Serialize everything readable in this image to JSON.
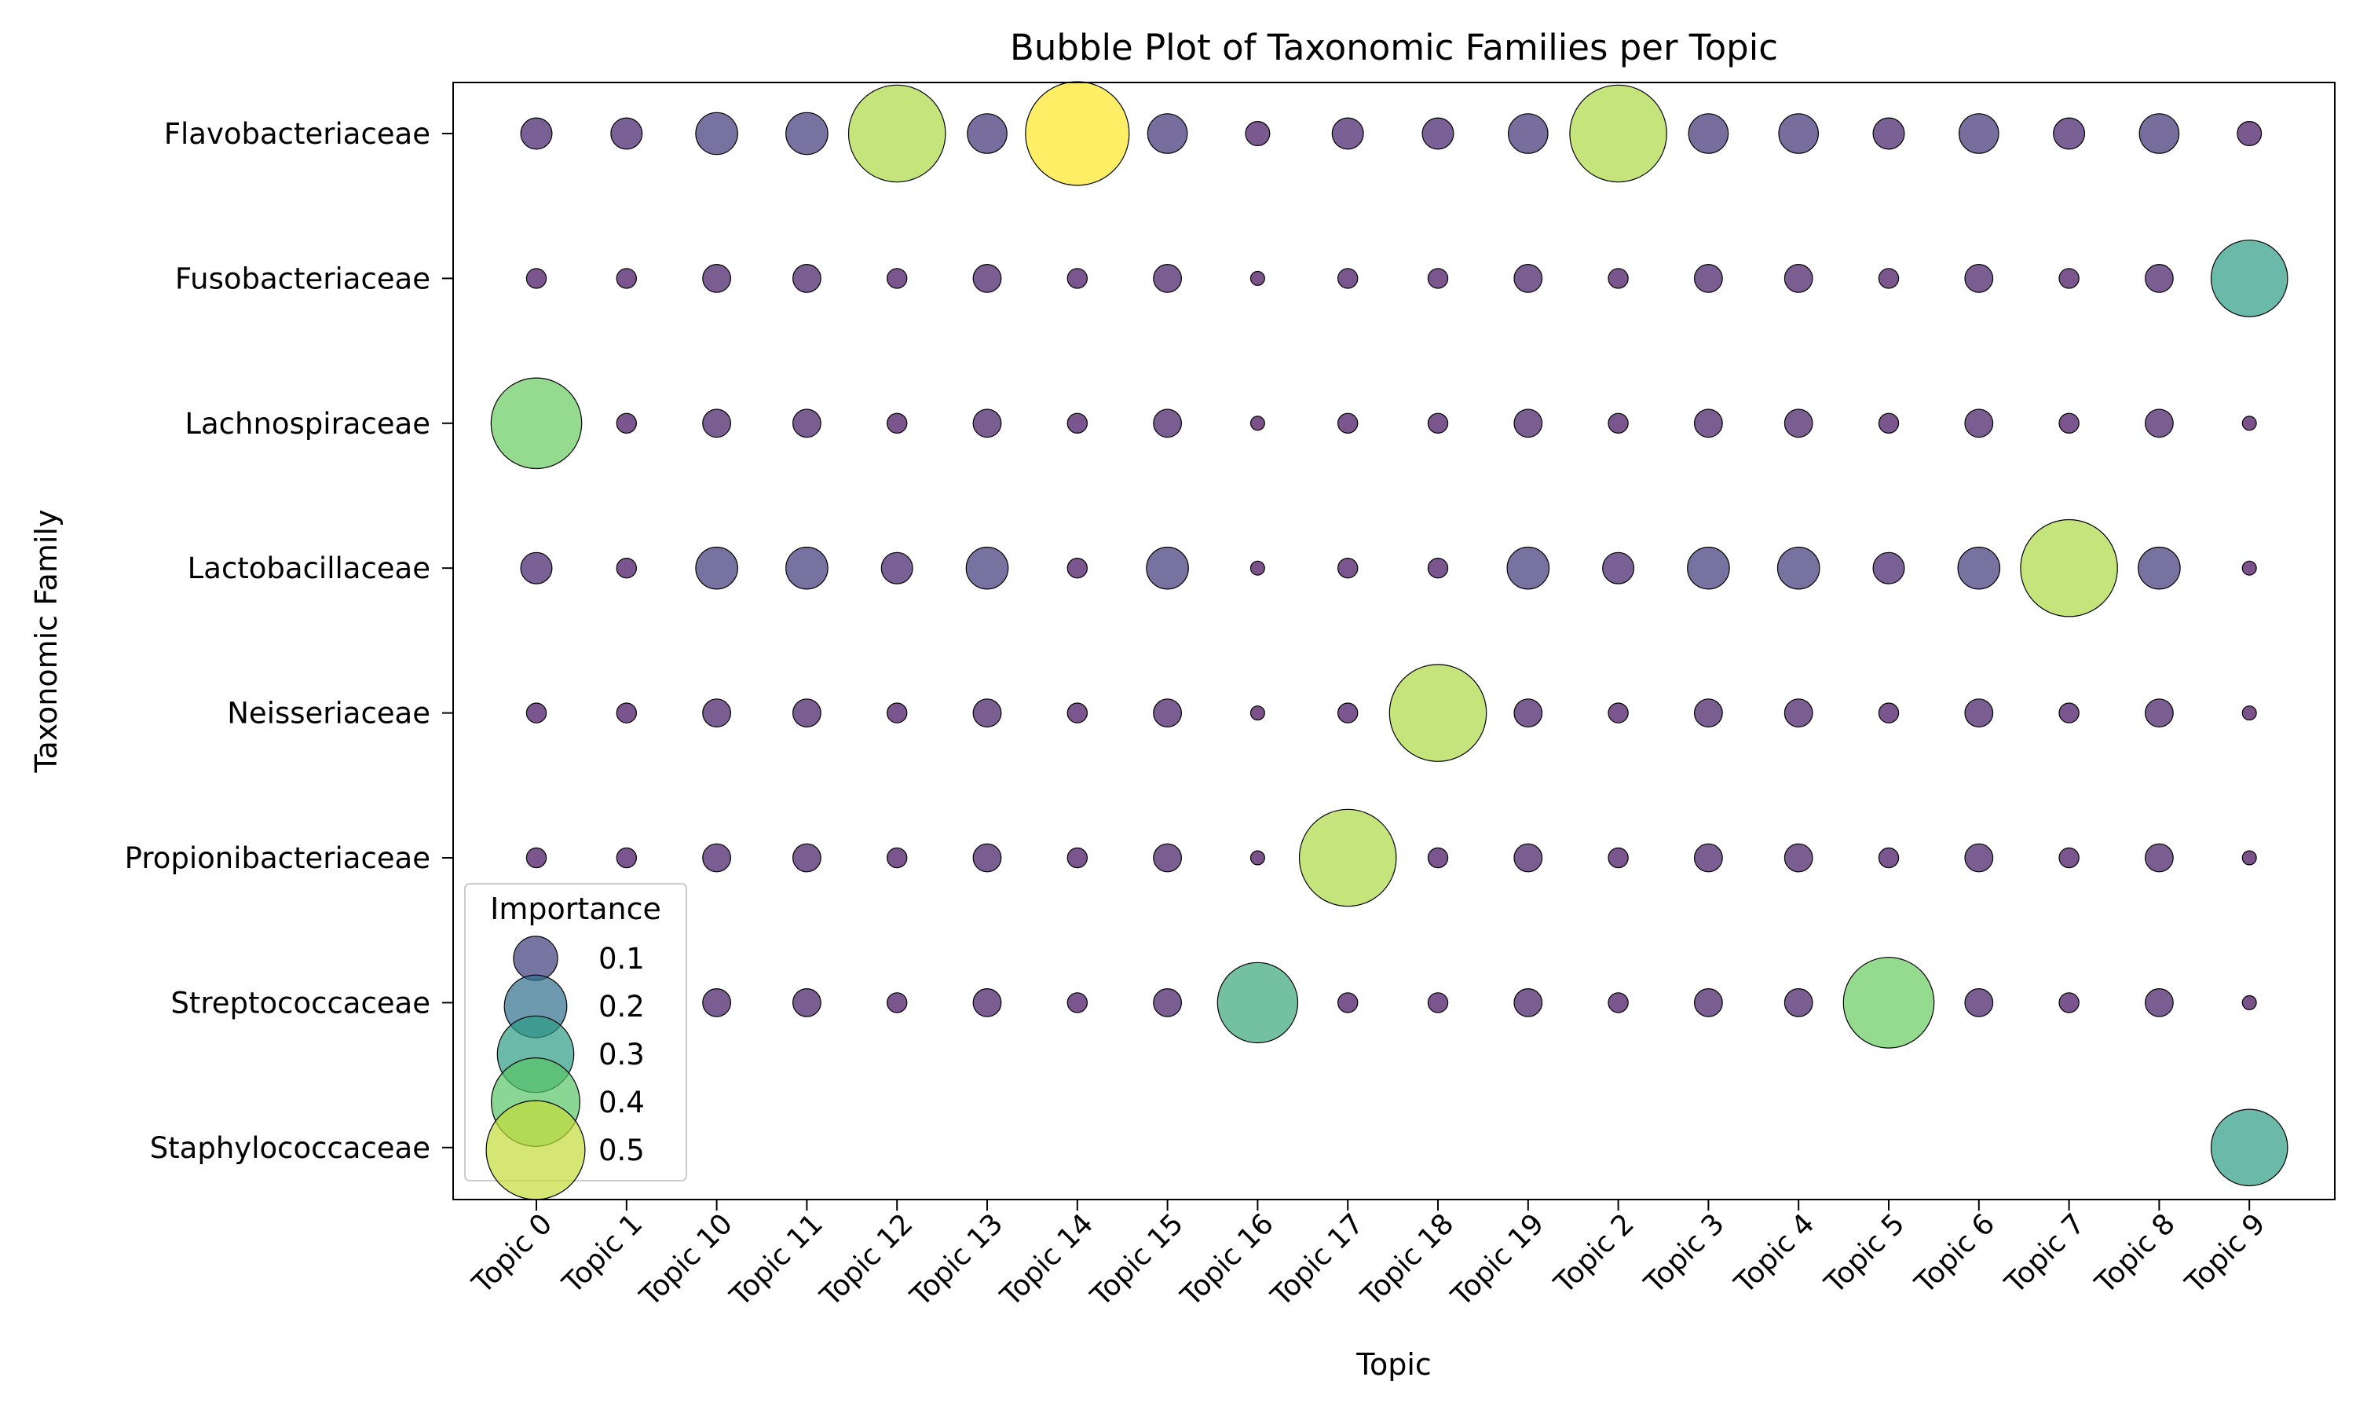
{
  "chart_data": {
    "type": "scatter",
    "title": "Bubble Plot of Taxonomic Families per Topic",
    "xlabel": "Topic",
    "ylabel": "Taxonomic Family",
    "categories": [
      "Topic 0",
      "Topic 1",
      "Topic 10",
      "Topic 11",
      "Topic 12",
      "Topic 13",
      "Topic 14",
      "Topic 15",
      "Topic 16",
      "Topic 17",
      "Topic 18",
      "Topic 19",
      "Topic 2",
      "Topic 3",
      "Topic 4",
      "Topic 5",
      "Topic 6",
      "Topic 7",
      "Topic 8",
      "Topic 9"
    ],
    "families": [
      "Flavobacteriaceae",
      "Fusobacteriaceae",
      "Lachnospiraceae",
      "Lactobacillaceae",
      "Neisseriaceae",
      "Propionibacteriaceae",
      "Streptococcaceae",
      "Staphylococcaceae"
    ],
    "colormap": "viridis",
    "size_scale_max": 0.55,
    "grid": false,
    "legend": {
      "title": "Importance",
      "placement": "lower-left",
      "entries": [
        "0.1",
        "0.2",
        "0.3",
        "0.4",
        "0.5"
      ],
      "values": [
        0.1,
        0.2,
        0.3,
        0.4,
        0.5
      ]
    },
    "series": [
      {
        "family": "Flavobacteriaceae",
        "values": [
          0.05,
          0.05,
          0.09,
          0.09,
          0.48,
          0.08,
          0.55,
          0.08,
          0.03,
          0.05,
          0.05,
          0.08,
          0.48,
          0.08,
          0.08,
          0.05,
          0.08,
          0.05,
          0.08,
          0.03
        ]
      },
      {
        "family": "Fusobacteriaceae",
        "values": [
          0.02,
          0.02,
          0.04,
          0.04,
          0.02,
          0.04,
          0.02,
          0.04,
          0.01,
          0.02,
          0.02,
          0.04,
          0.02,
          0.04,
          0.04,
          0.02,
          0.04,
          0.02,
          0.04,
          0.3
        ]
      },
      {
        "family": "Lachnospiraceae",
        "values": [
          0.42,
          0.02,
          0.04,
          0.04,
          0.02,
          0.04,
          0.02,
          0.04,
          0.01,
          0.02,
          0.02,
          0.04,
          0.02,
          0.04,
          0.04,
          0.02,
          0.04,
          0.02,
          0.04,
          0.01
        ]
      },
      {
        "family": "Lactobacillaceae",
        "values": [
          0.05,
          0.02,
          0.09,
          0.09,
          0.05,
          0.09,
          0.02,
          0.09,
          0.01,
          0.02,
          0.02,
          0.09,
          0.05,
          0.09,
          0.09,
          0.05,
          0.09,
          0.48,
          0.09,
          0.01
        ]
      },
      {
        "family": "Neisseriaceae",
        "values": [
          0.02,
          0.02,
          0.04,
          0.04,
          0.02,
          0.04,
          0.02,
          0.04,
          0.01,
          0.02,
          0.48,
          0.04,
          0.02,
          0.04,
          0.04,
          0.02,
          0.04,
          0.02,
          0.04,
          0.01
        ]
      },
      {
        "family": "Propionibacteriaceae",
        "values": [
          0.02,
          0.02,
          0.04,
          0.04,
          0.02,
          0.04,
          0.02,
          0.04,
          0.01,
          0.48,
          0.02,
          0.04,
          0.02,
          0.04,
          0.04,
          0.02,
          0.04,
          0.02,
          0.04,
          0.01
        ]
      },
      {
        "family": "Streptococcaceae",
        "values": [
          null,
          null,
          0.04,
          0.04,
          0.02,
          0.04,
          0.02,
          0.04,
          0.33,
          0.02,
          0.02,
          0.04,
          0.02,
          0.04,
          0.04,
          0.42,
          0.04,
          0.02,
          0.04,
          0.01
        ]
      },
      {
        "family": "Staphylococcaceae",
        "values": [
          null,
          null,
          null,
          null,
          null,
          null,
          null,
          null,
          null,
          null,
          null,
          null,
          null,
          null,
          null,
          null,
          null,
          null,
          null,
          0.3
        ]
      }
    ]
  }
}
